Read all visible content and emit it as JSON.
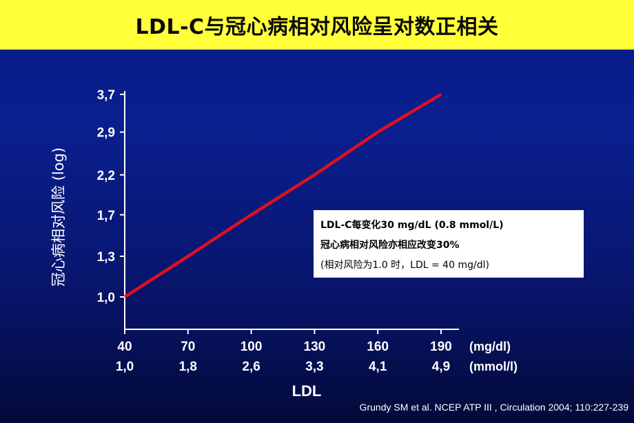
{
  "title": "LDL-C与冠心病相对风险呈对数正相关",
  "chart_data": {
    "type": "line",
    "title": "LDL-C与冠心病相对风险呈对数正相关",
    "ylabel": "冠心病相对风险 (log)",
    "xlabel": "LDL",
    "y_scale": "log",
    "y_ticks": [
      "1,0",
      "1,3",
      "1,7",
      "2,2",
      "2,9",
      "3,7"
    ],
    "y_tick_values": [
      1.0,
      1.3,
      1.7,
      2.2,
      2.9,
      3.7
    ],
    "ylim": [
      0.9,
      3.9
    ],
    "x_ticks_mgdl": [
      "40",
      "70",
      "100",
      "130",
      "160",
      "190"
    ],
    "x_tick_values": [
      40,
      70,
      100,
      130,
      160,
      190
    ],
    "x_ticks_mmol": [
      "1,0",
      "1,8",
      "2,6",
      "3,3",
      "4,1",
      "4,9"
    ],
    "x_unit_mgdl": "(mg/dl)",
    "x_unit_mmol": "(mmol/l)",
    "xlim": [
      40,
      200
    ],
    "series": [
      {
        "x": [
          40,
          70,
          100,
          130,
          160,
          190
        ],
        "y": [
          1.0,
          1.3,
          1.7,
          2.2,
          2.9,
          3.7
        ],
        "color": "#e0101c"
      }
    ],
    "annotations": [
      "LDL-C每变化30 mg/dL (0.8 mmol/L)",
      "冠心病相对风险亦相应改变30%",
      "(相对风险为1.0 时，LDL = 40 mg/dl)"
    ]
  },
  "note": {
    "line1": "LDL-C每变化30 mg/dL (0.8 mmol/L)",
    "line2": "冠心病相对风险亦相应改变30%",
    "line3": "(相对风险为1.0 时，LDL = 40 mg/dl)"
  },
  "citation": "Grundy SM et al. NCEP ATP III , Circulation 2004; 110:227-239",
  "colors": {
    "title_bar": "#ffff3a",
    "background": "#0a1f8f",
    "line": "#e0101c",
    "axis": "#ffffff"
  }
}
